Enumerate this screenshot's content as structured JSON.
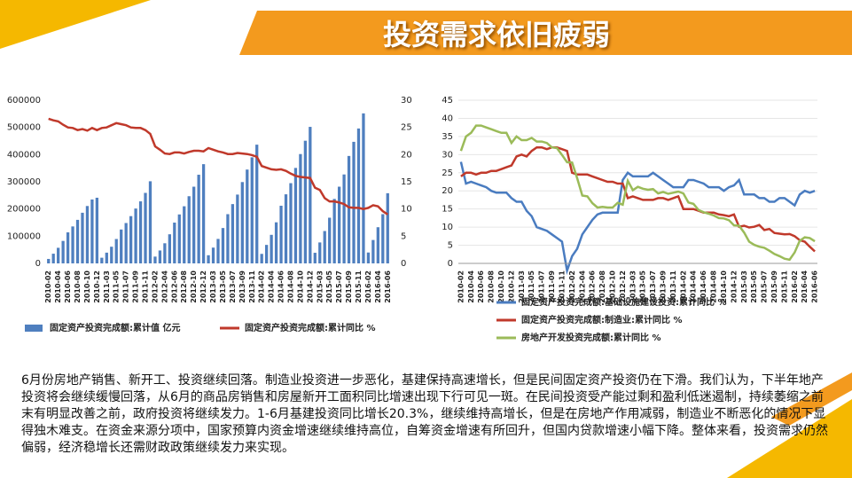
{
  "title": "投资需求依旧疲弱",
  "chart_data": [
    {
      "type": "bar_line",
      "categories": [
        "2010-02",
        null,
        "2010-04",
        null,
        "2010-06",
        null,
        "2010-08",
        null,
        "2010-10",
        null,
        "2010-12",
        null,
        "2011-03",
        null,
        "2011-05",
        null,
        "2011-07",
        null,
        "2011-09",
        null,
        "2011-11",
        null,
        "2012-02",
        null,
        "2012-04",
        null,
        "2012-06",
        null,
        "2012-08",
        null,
        "2012-10",
        null,
        "2012-12",
        null,
        "2013-03",
        null,
        "2013-05",
        null,
        "2013-07",
        null,
        "2013-09",
        null,
        "2013-11",
        null,
        "2014-02",
        null,
        "2014-04",
        null,
        "2014-06",
        null,
        "2014-08",
        null,
        "2014-10",
        null,
        "2014-12",
        null,
        "2015-03",
        null,
        "2015-05",
        null,
        "2015-07",
        null,
        "2015-09",
        null,
        "2015-11",
        null,
        "2016-02",
        null,
        "2016-04",
        null,
        "2016-06"
      ],
      "series": [
        {
          "name": "固定资产投资完成额:累计值 亿元",
          "color": "#4f7fbf",
          "kind": "bar",
          "values": [
            16403,
            35620,
            57315,
            82599,
            114095,
            135851,
            160067,
            186213,
            210964,
            234931,
            241415,
            20831,
            39465,
            61266,
            89671,
            124567,
            148436,
            173803,
            201707,
            228083,
            259250,
            301933,
            25000,
            47476,
            74000,
            107000,
            150000,
            180000,
            210000,
            247000,
            282000,
            326000,
            364835,
            30000,
            58000,
            90000,
            130000,
            181000,
            218000,
            253000,
            299000,
            345000,
            390000,
            436528,
            35000,
            68000,
            105000,
            151000,
            212000,
            254000,
            295000,
            351000,
            402000,
            451000,
            502005,
            39000,
            77000,
            119000,
            168000,
            237000,
            282000,
            327000,
            395000,
            447000,
            496000,
            551590,
            40000,
            86000,
            133000,
            181000,
            258000
          ]
        },
        {
          "name": "固定资产投资完成额:累计同比 %",
          "color": "#c0392b",
          "kind": "line",
          "axis": "y2",
          "values": [
            26.6,
            26.3,
            26.1,
            25.5,
            25.0,
            24.9,
            24.5,
            24.7,
            24.4,
            24.9,
            24.5,
            24.9,
            25.0,
            25.4,
            25.8,
            25.6,
            25.4,
            25.0,
            24.9,
            24.9,
            24.5,
            23.8,
            21.5,
            20.9,
            20.2,
            20.1,
            20.4,
            20.4,
            20.2,
            20.5,
            20.7,
            20.7,
            20.6,
            21.2,
            20.9,
            20.6,
            20.4,
            20.1,
            20.1,
            20.3,
            20.2,
            20.1,
            19.9,
            19.6,
            17.9,
            17.6,
            17.3,
            17.2,
            17.3,
            17.0,
            16.5,
            16.1,
            15.9,
            15.8,
            15.7,
            13.9,
            13.5,
            12.0,
            11.4,
            11.4,
            11.2,
            10.9,
            10.3,
            10.2,
            10.2,
            10.0,
            10.2,
            10.7,
            10.5,
            9.6,
            9.0
          ]
        }
      ],
      "ylim": [
        0,
        600000
      ],
      "yticks": [
        0,
        100000,
        200000,
        300000,
        400000,
        500000,
        600000
      ],
      "y2lim": [
        0,
        30
      ],
      "y2ticks": [
        0,
        5,
        10,
        15,
        20,
        25,
        30
      ],
      "legend": "bottom"
    },
    {
      "type": "line",
      "categories": [
        "2010-02",
        null,
        "2010-04",
        null,
        "2010-06",
        null,
        "2010-08",
        null,
        "2010-10",
        null,
        "2010-12",
        null,
        "2011-03",
        null,
        "2011-05",
        null,
        "2011-07",
        null,
        "2011-09",
        null,
        "2011-11",
        null,
        "2012-02",
        null,
        "2012-04",
        null,
        "2012-06",
        null,
        "2012-08",
        null,
        "2012-10",
        null,
        "2012-12",
        null,
        "2013-03",
        null,
        "2013-05",
        null,
        "2013-07",
        null,
        "2013-09",
        null,
        "2013-11",
        null,
        "2014-02",
        null,
        "2014-04",
        null,
        "2014-06",
        null,
        "2014-08",
        null,
        "2014-10",
        null,
        "2014-12",
        null,
        "2015-03",
        null,
        "2015-05",
        null,
        "2015-07",
        null,
        "2015-09",
        null,
        "2015-11",
        null,
        "2016-02",
        null,
        "2016-04",
        null,
        "2016-06"
      ],
      "series": [
        {
          "name": "固定资产投资完成额:基础设施建设投资:累计同比 %",
          "color": "#4a7cc0",
          "values": [
            28,
            22,
            22.5,
            22,
            21.5,
            21,
            20,
            19.5,
            19.5,
            19.5,
            18,
            17,
            17,
            14.5,
            13,
            10,
            9.5,
            9,
            8,
            7,
            6,
            -2,
            2,
            4,
            8,
            10,
            12,
            13.5,
            14,
            14,
            14,
            14,
            23,
            25,
            24,
            24,
            24,
            24,
            25,
            24,
            23,
            22,
            21,
            21,
            21,
            23,
            23,
            22.5,
            22,
            21,
            21,
            21,
            20,
            21,
            21.5,
            23,
            19,
            19,
            19,
            18,
            18,
            17,
            17,
            18,
            18,
            17,
            16,
            19,
            20,
            19.5,
            20
          ]
        },
        {
          "name": "固定资产投资完成额:制造业:累计同比 %",
          "color": "#c0392b",
          "values": [
            24,
            25,
            25,
            24.5,
            25,
            25,
            25.5,
            25.5,
            26,
            26.5,
            27,
            29.5,
            30,
            29.5,
            31,
            32,
            32,
            31.5,
            32,
            32,
            31.5,
            31,
            25,
            24.5,
            24.5,
            24.5,
            24,
            23.5,
            23,
            22.5,
            22.5,
            22,
            22,
            18,
            18.5,
            18,
            17.5,
            17.5,
            17.5,
            18,
            18,
            17.5,
            18,
            18.5,
            15,
            15,
            15,
            14.5,
            14,
            14,
            14,
            13.5,
            13.3,
            13,
            13.5,
            10.1,
            10.4,
            9.9,
            10.1,
            10.6,
            9.2,
            9.5,
            8.4,
            8.2,
            8.0,
            8.1,
            7.5,
            6.4,
            6.0,
            4.6,
            3.3
          ]
        },
        {
          "name": "房地产开发投资完成额:累计同比 %",
          "color": "#9bbb59",
          "values": [
            31,
            35,
            36,
            38,
            38,
            37.5,
            37,
            36.5,
            36,
            36,
            33.2,
            35,
            34,
            34,
            34.6,
            33.6,
            33.6,
            33.2,
            32,
            31.8,
            29.9,
            27.9,
            27.8,
            23.5,
            18.7,
            18.5,
            16.6,
            15.4,
            15.6,
            15.4,
            15.4,
            16.7,
            16.2,
            22.8,
            20.2,
            21.1,
            20.6,
            20.3,
            20.5,
            19.3,
            19.7,
            19.2,
            19.5,
            19.8,
            19.3,
            16.8,
            16.4,
            14.7,
            14.1,
            13.7,
            13.2,
            12.5,
            12.4,
            11.9,
            10.5,
            10.4,
            8.5,
            6.0,
            5.1,
            4.6,
            4.3,
            3.5,
            2.6,
            2.0,
            1.3,
            1.0,
            3.0,
            6.2,
            7.2,
            7.0,
            6.1
          ]
        }
      ],
      "ylim": [
        0,
        45
      ],
      "yticks": [
        0,
        5,
        10,
        15,
        20,
        25,
        30,
        35,
        40,
        45
      ],
      "legend": "bottom"
    }
  ],
  "paragraph": "6月份房地产销售、新开工、投资继续回落。制造业投资进一步恶化，基建保持高速增长，但是民间固定资产投资仍在下滑。我们认为，下半年地产投资将会继续缓慢回落，从6月的商品房销售和房屋新开工面积同比增速出现下行可见一斑。在民间投资受产能过剩和盈利低迷遏制，持续萎缩之前末有明显改善之前，政府投资将继续发力。1-6月基建投资同比增长20.3%，继续维持高增长，但是在房地产作用减弱，制造业不断恶化的情况下显得独木难支。在资金来源分项中，国家预算内资金增速继续维持高位，自筹资金增速有所回升，但国内贷款增速小幅下降。整体来看，投资需求仍然偏弱，经济稳增长还需财政政策继续发力来实现。"
}
